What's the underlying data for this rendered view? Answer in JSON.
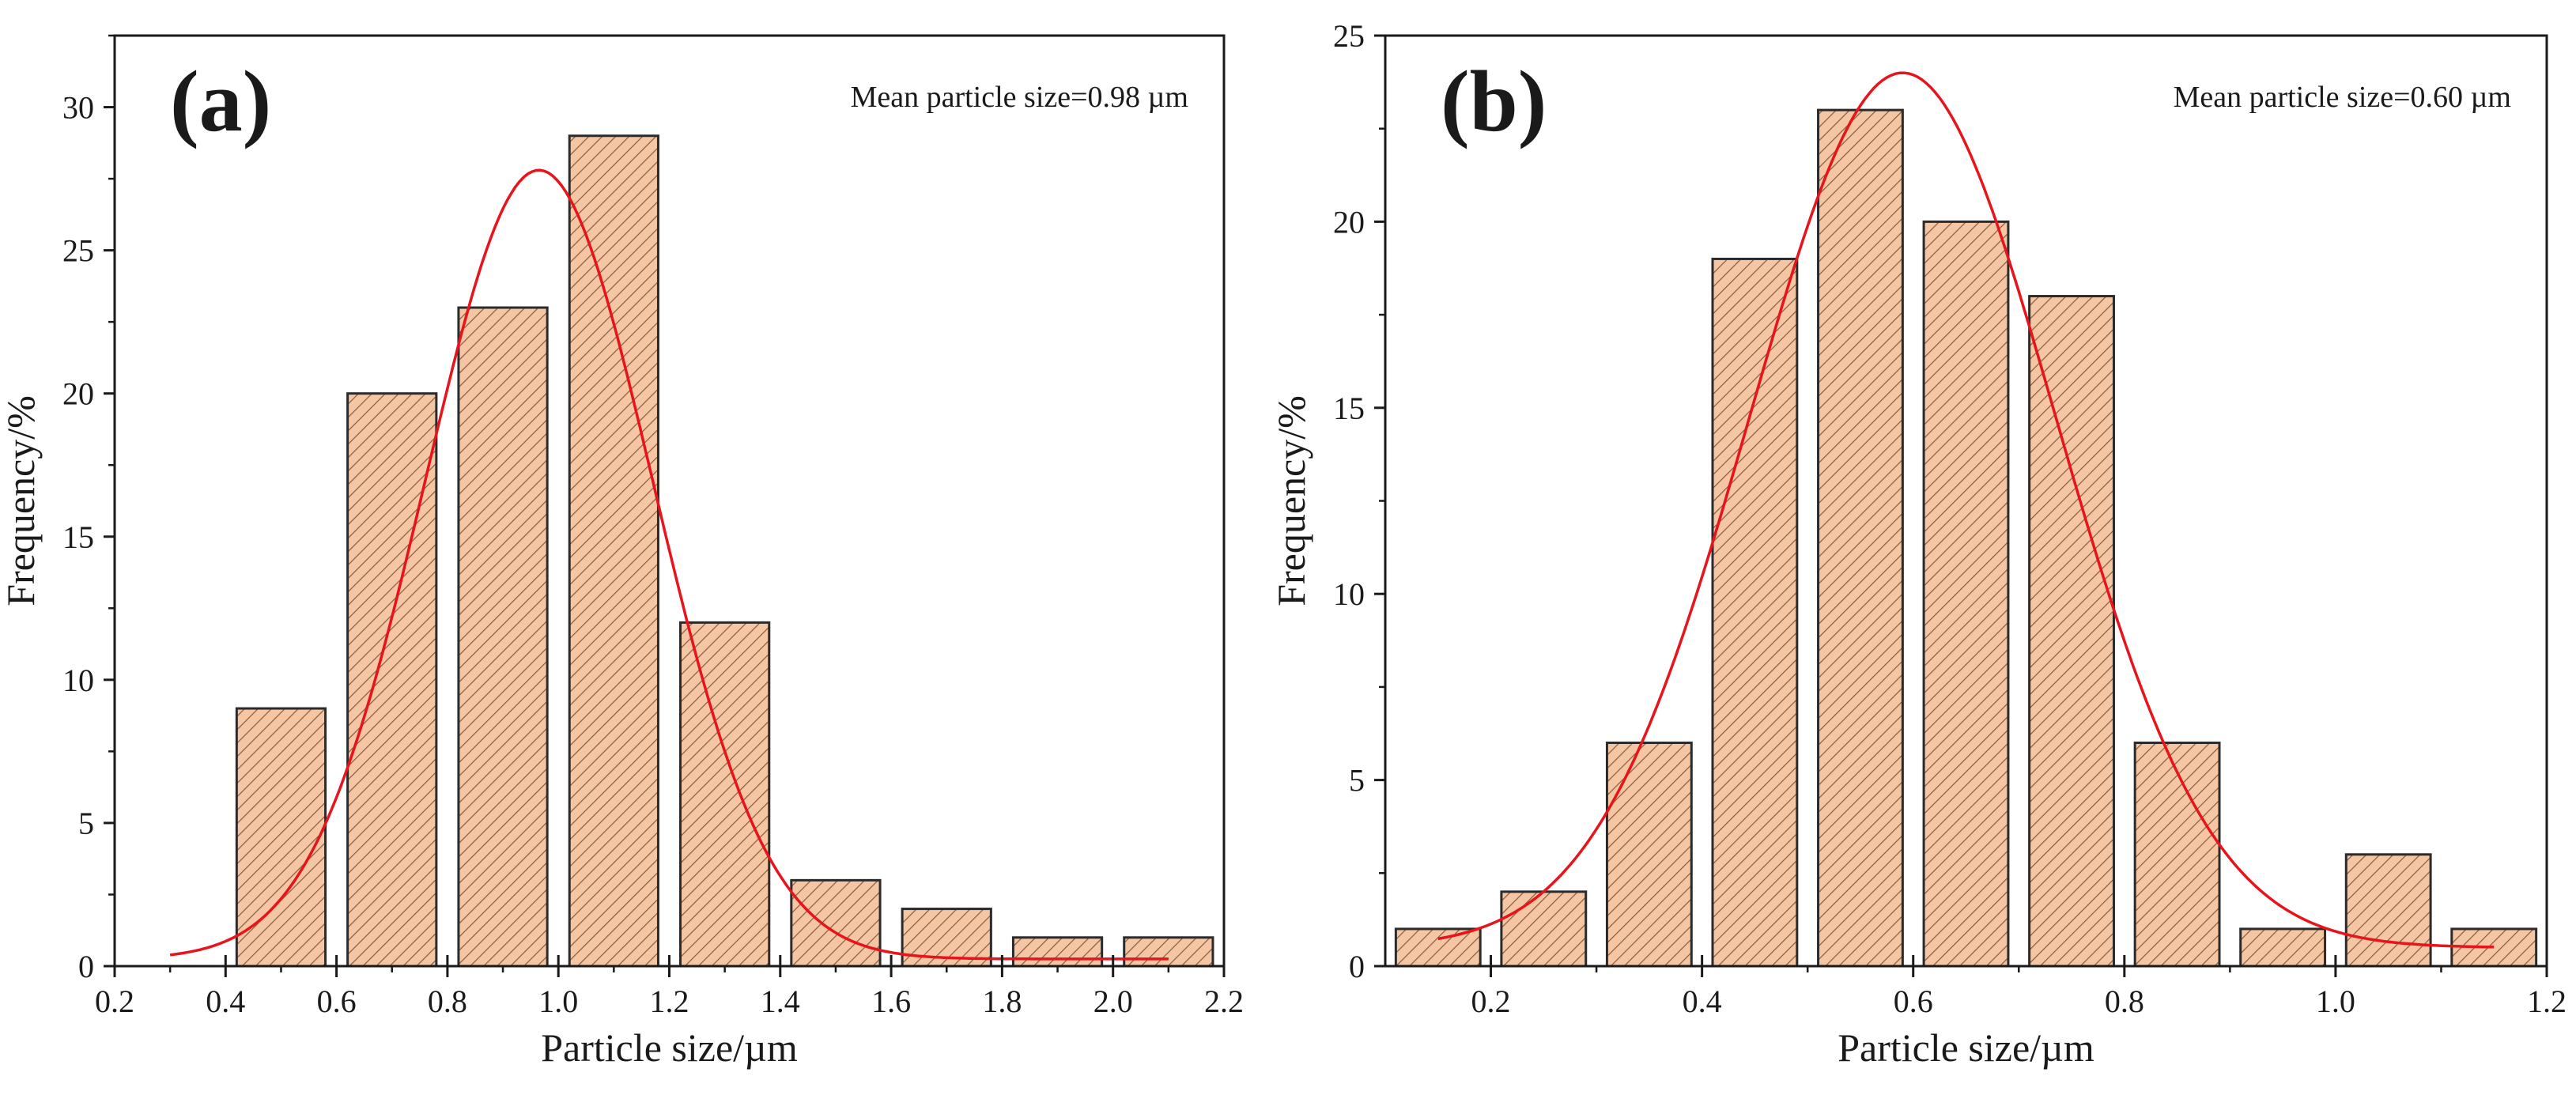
{
  "colors": {
    "bar_fill": "#F4C6A3",
    "hatch": "#8A5A3C",
    "bar_edge": "#2b2b2b",
    "fit_curve": "#E8141C",
    "axis": "#1a1a1a",
    "background": "#ffffff"
  },
  "chart_data": [
    {
      "type": "bar",
      "panel_label": "(a)",
      "annotation": "Mean particle size=0.98 µm",
      "xlabel": "Particle size/µm",
      "ylabel": "Frequency/%",
      "xlim": [
        0.2,
        2.2
      ],
      "ylim": [
        0,
        32.5
      ],
      "xticks": [
        0.2,
        0.4,
        0.6,
        0.8,
        1.0,
        1.2,
        1.4,
        1.6,
        1.8,
        2.0,
        2.2
      ],
      "xtick_labels": [
        "0.2",
        "0.4",
        "0.6",
        "0.8",
        "1.0",
        "1.2",
        "1.4",
        "1.6",
        "1.8",
        "2.0",
        "2.2"
      ],
      "yticks": [
        0,
        5,
        10,
        15,
        20,
        25,
        30
      ],
      "ytick_labels": [
        "0",
        "5",
        "10",
        "15",
        "20",
        "25",
        "30"
      ],
      "bin_width": 0.2,
      "bar_width": 0.16,
      "bars": {
        "centers": [
          0.5,
          0.7,
          0.9,
          1.1,
          1.3,
          1.5,
          1.7,
          1.9,
          2.1
        ],
        "values": [
          9,
          20,
          23,
          29,
          12,
          3,
          2,
          1,
          1
        ]
      },
      "fit": {
        "type": "gaussian",
        "peak_x": 0.965,
        "peak_y": 27.8,
        "sigma": 0.205,
        "x_range": [
          0.3,
          2.1
        ],
        "offset": 0.25
      }
    },
    {
      "type": "bar",
      "panel_label": "(b)",
      "annotation": "Mean particle size=0.60 µm",
      "xlabel": "Particle size/µm",
      "ylabel": "Frequency/%",
      "xlim": [
        0.1,
        1.2
      ],
      "ylim": [
        0,
        25
      ],
      "xticks": [
        0.2,
        0.4,
        0.6,
        0.8,
        1.0,
        1.2
      ],
      "xtick_labels": [
        "0.2",
        "0.4",
        "0.6",
        "0.8",
        "1.0",
        "1.2"
      ],
      "yticks": [
        0,
        5,
        10,
        15,
        20,
        25
      ],
      "ytick_labels": [
        "0",
        "5",
        "10",
        "15",
        "20",
        "25"
      ],
      "bin_width": 0.1,
      "bar_width": 0.08,
      "bars": {
        "centers": [
          0.15,
          0.25,
          0.35,
          0.45,
          0.55,
          0.65,
          0.75,
          0.85,
          0.95,
          1.05,
          1.15
        ],
        "values": [
          1,
          2,
          6,
          19,
          23,
          20,
          18,
          6,
          1,
          3,
          1
        ]
      },
      "fit": {
        "type": "gaussian",
        "peak_x": 0.59,
        "peak_y": 24.0,
        "sigma": 0.145,
        "x_range": [
          0.15,
          1.15
        ],
        "offset": 0.5
      }
    }
  ]
}
